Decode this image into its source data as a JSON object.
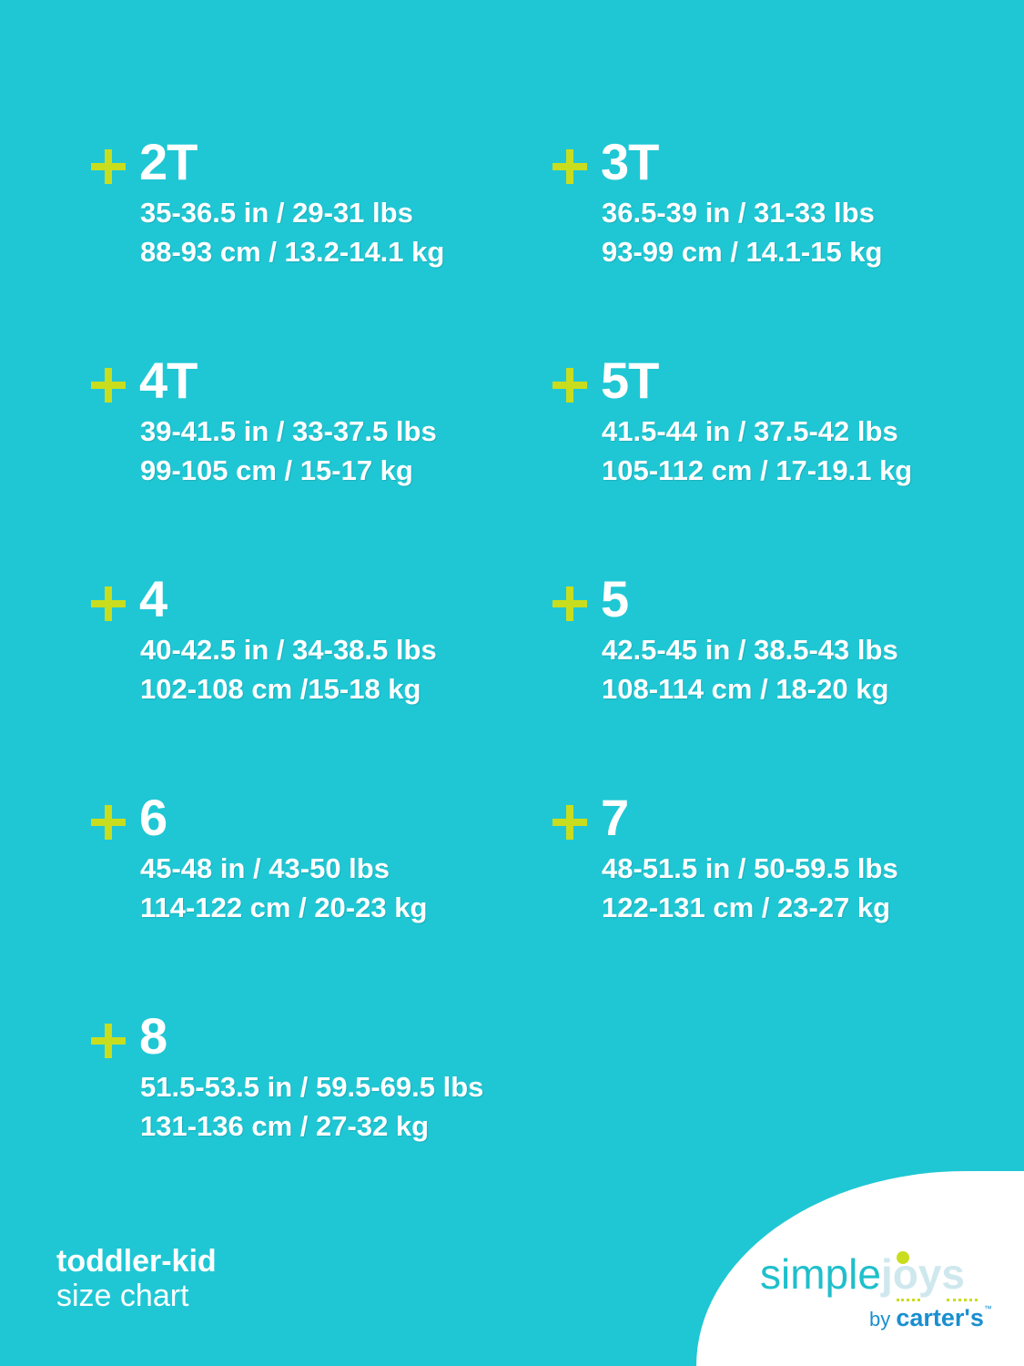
{
  "sizes": [
    {
      "label": "2T",
      "imperial": "35-36.5 in / 29-31 lbs",
      "metric": "88-93 cm / 13.2-14.1 kg"
    },
    {
      "label": "3T",
      "imperial": "36.5-39 in / 31-33 lbs",
      "metric": "93-99 cm / 14.1-15 kg"
    },
    {
      "label": "4T",
      "imperial": "39-41.5 in / 33-37.5 lbs",
      "metric": "99-105 cm / 15-17 kg"
    },
    {
      "label": "5T",
      "imperial": "41.5-44 in / 37.5-42 lbs",
      "metric": "105-112 cm / 17-19.1 kg"
    },
    {
      "label": "4",
      "imperial": "40-42.5 in / 34-38.5 lbs",
      "metric": "102-108 cm /15-18 kg"
    },
    {
      "label": "5",
      "imperial": "42.5-45 in / 38.5-43 lbs",
      "metric": "108-114 cm / 18-20 kg"
    },
    {
      "label": "6",
      "imperial": "45-48 in / 43-50 lbs",
      "metric": "114-122 cm / 20-23 kg"
    },
    {
      "label": "7",
      "imperial": "48-51.5 in / 50-59.5 lbs",
      "metric": "122-131 cm / 23-27 kg"
    },
    {
      "label": "8",
      "imperial": "51.5-53.5 in / 59.5-69.5 lbs",
      "metric": "131-136 cm / 27-32 kg"
    }
  ],
  "caption": {
    "line1": "toddler-kid",
    "line2": "size chart"
  },
  "logo": {
    "simple": "simple",
    "joys": "joys",
    "by": "by",
    "brand": "carter's",
    "tm": "™"
  },
  "colors": {
    "background": "#1fc7d4",
    "plus": "#c9dd1f",
    "text": "#ffffff"
  }
}
